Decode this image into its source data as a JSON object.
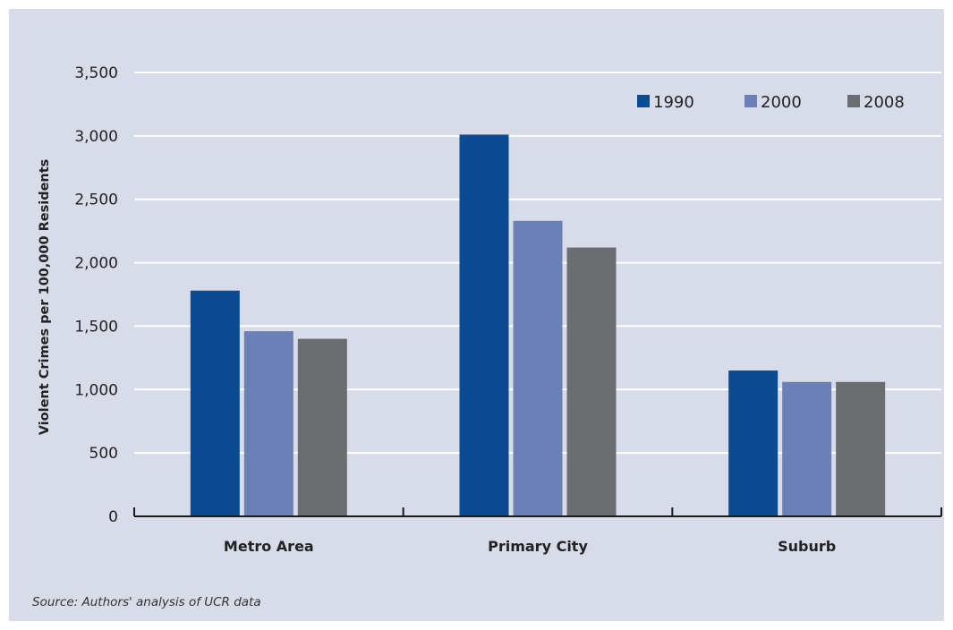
{
  "chart_data": {
    "type": "bar",
    "categories": [
      "Metro Area",
      "Primary City",
      "Suburb"
    ],
    "series": [
      {
        "name": "1990",
        "values": [
          1780,
          3010,
          1150
        ],
        "color": "#0b4b91"
      },
      {
        "name": "2000",
        "values": [
          1460,
          2330,
          1060
        ],
        "color": "#6a80b6"
      },
      {
        "name": "2008",
        "values": [
          1400,
          2120,
          1060
        ],
        "color": "#6b6e71"
      }
    ],
    "ylabel": "Violent Crimes per 100,000 Residents",
    "xlabel": "",
    "ylim": [
      0,
      3500
    ],
    "yticks": [
      0,
      500,
      1000,
      1500,
      2000,
      2500,
      3000,
      3500
    ],
    "ytick_labels": [
      "0",
      "500",
      "1,000",
      "1,500",
      "2,000",
      "2,500",
      "3,000",
      "3,500"
    ],
    "grid": true,
    "legend_position": "top-right"
  },
  "source_note": "Source: Authors' analysis of UCR data"
}
